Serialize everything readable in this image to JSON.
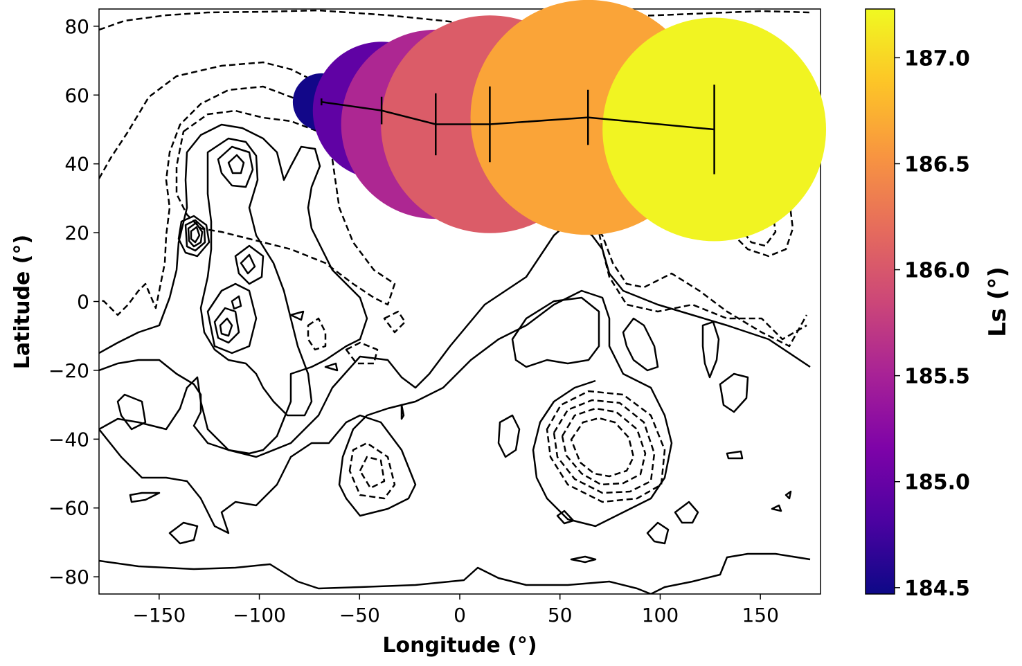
{
  "chart_data": {
    "type": "scatter",
    "title": "",
    "xlabel": "Longitude (°)",
    "ylabel": "Latitude (°)",
    "xlim": [
      -180,
      180
    ],
    "ylim": [
      -85,
      85
    ],
    "xticks": [
      -150,
      -100,
      -50,
      0,
      50,
      100,
      150
    ],
    "yticks": [
      -80,
      -60,
      -40,
      -20,
      0,
      20,
      40,
      60,
      80
    ],
    "x_tick_labels": [
      "−150",
      "−100",
      "−50",
      "0",
      "50",
      "100",
      "150"
    ],
    "y_tick_labels": [
      "−80",
      "−60",
      "−40",
      "−20",
      "0",
      "20",
      "40",
      "60",
      "80"
    ],
    "grid": false,
    "series": [
      {
        "x": [
          -69,
          -39,
          -12,
          15,
          64,
          127
        ],
        "y": [
          58,
          55.5,
          51.5,
          51.5,
          53.5,
          50
        ],
        "ls": [
          184.5,
          184.95,
          185.55,
          186.05,
          186.65,
          187.2
        ],
        "size": [
          10,
          24,
          33,
          38,
          41,
          39
        ],
        "err_y": [
          1,
          4,
          9,
          11,
          8,
          13
        ]
      }
    ],
    "colorbar": {
      "label": "Ls (°)",
      "colormap": "plasma",
      "range": [
        184.47,
        187.23
      ],
      "ticks": [
        184.5,
        185.0,
        185.5,
        186.0,
        186.5,
        187.0
      ],
      "tick_labels": [
        "184.5",
        "185.0",
        "185.5",
        "186.0",
        "186.5",
        "187.0"
      ]
    }
  }
}
